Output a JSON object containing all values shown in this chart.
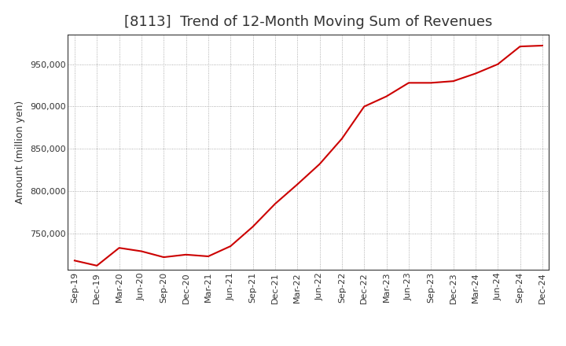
{
  "title": "[8113]  Trend of 12-Month Moving Sum of Revenues",
  "ylabel": "Amount (million yen)",
  "background_color": "#ffffff",
  "line_color": "#cc0000",
  "grid_color": "#999999",
  "x_labels": [
    "Sep-19",
    "Dec-19",
    "Mar-20",
    "Jun-20",
    "Sep-20",
    "Dec-20",
    "Mar-21",
    "Jun-21",
    "Sep-21",
    "Dec-21",
    "Mar-22",
    "Jun-22",
    "Sep-22",
    "Dec-22",
    "Mar-23",
    "Jun-23",
    "Sep-23",
    "Dec-23",
    "Mar-24",
    "Jun-24",
    "Sep-24",
    "Dec-24"
  ],
  "values": [
    718000,
    712000,
    733000,
    729000,
    722000,
    725000,
    723000,
    735000,
    758000,
    785000,
    808000,
    832000,
    862000,
    900000,
    912000,
    928000,
    928000,
    930000,
    939000,
    950000,
    971000,
    972000
  ],
  "ylim_min": 707000,
  "ylim_max": 985000,
  "yticks": [
    750000,
    800000,
    850000,
    900000,
    950000
  ],
  "title_fontsize": 13,
  "title_color": "#333333",
  "axis_label_fontsize": 9,
  "tick_fontsize": 8
}
